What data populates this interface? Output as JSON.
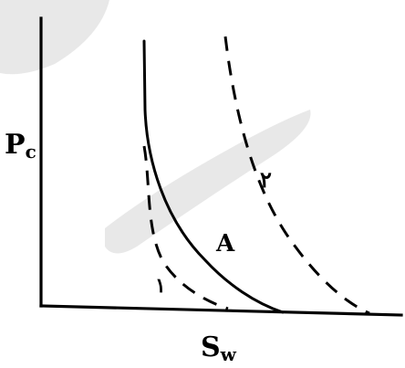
{
  "diagram": {
    "y_axis_label": "P",
    "y_axis_subscript": "c",
    "x_axis_label": "S",
    "x_axis_subscript": "w",
    "curve_labels": {
      "solid": "A",
      "dashed_left": "۱",
      "dashed_right": "۲"
    }
  }
}
